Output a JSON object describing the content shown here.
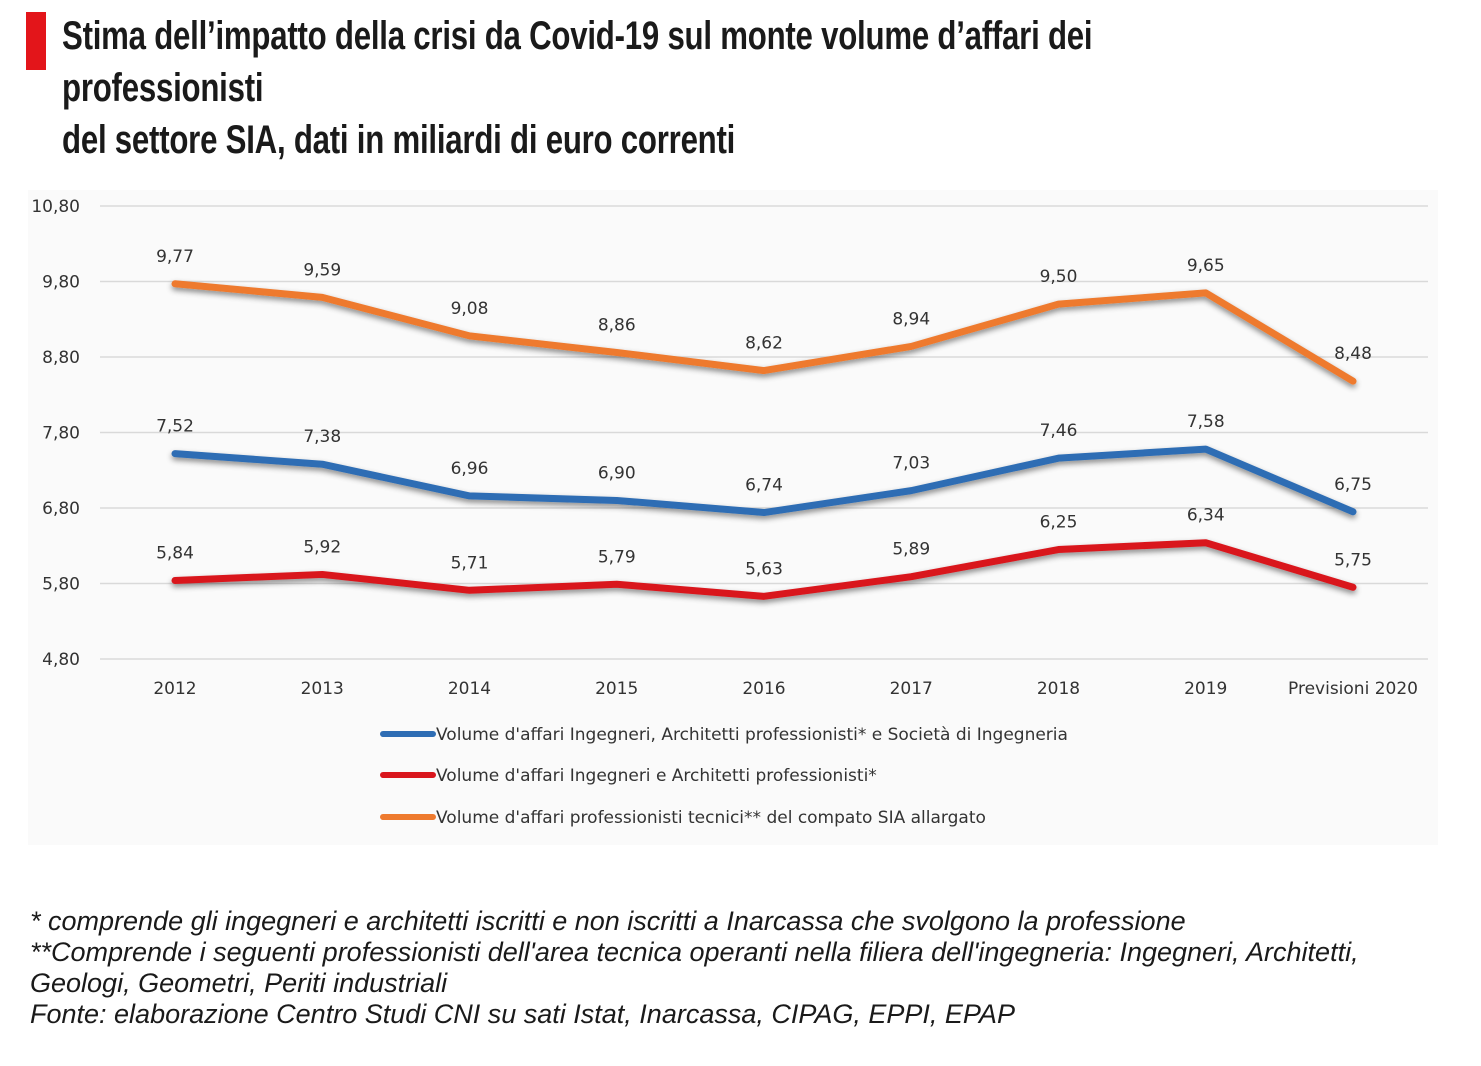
{
  "header": {
    "title_line1": "Stima dell’impatto della crisi da Covid-19 sul monte volume d’affari dei professionisti",
    "title_line2": "del settore SIA, dati in miliardi di euro correnti",
    "accent_color": "#e3151a"
  },
  "chart_data": {
    "type": "line",
    "categories": [
      "2012",
      "2013",
      "2014",
      "2015",
      "2016",
      "2017",
      "2018",
      "2019",
      "Previsioni 2020"
    ],
    "ylim": [
      4.8,
      10.8
    ],
    "yticks": [
      "4,80",
      "5,80",
      "6,80",
      "7,80",
      "8,80",
      "9,80",
      "10,80"
    ],
    "grid": true,
    "legend_position": "bottom",
    "series": [
      {
        "name": "Volume d'affari Ingegneri, Architetti professionisti* e Società di Ingegneria",
        "color": "#2e6db4",
        "values": [
          7.52,
          7.38,
          6.96,
          6.9,
          6.74,
          7.03,
          7.46,
          7.58,
          6.75
        ],
        "labels": [
          "7,52",
          "7,38",
          "6,96",
          "6,90",
          "6,74",
          "7,03",
          "7,46",
          "7,58",
          "6,75"
        ]
      },
      {
        "name": "Volume d'affari Ingegneri e Architetti professionisti*",
        "color": "#d9161d",
        "values": [
          5.84,
          5.92,
          5.71,
          5.79,
          5.63,
          5.89,
          6.25,
          6.34,
          5.75
        ],
        "labels": [
          "5,84",
          "5,92",
          "5,71",
          "5,79",
          "5,63",
          "5,89",
          "6,25",
          "6,34",
          "5,75"
        ]
      },
      {
        "name": "Volume d'affari professionisti tecnici** del compato SIA allargato",
        "color": "#ee7a2e",
        "values": [
          9.77,
          9.59,
          9.08,
          8.86,
          8.62,
          8.94,
          9.5,
          9.65,
          8.48
        ],
        "labels": [
          "9,77",
          "9,59",
          "9,08",
          "8,86",
          "8,62",
          "8,94",
          "9,50",
          "9,65",
          "8,48"
        ]
      }
    ]
  },
  "notes": {
    "line1": " * comprende gli ingegneri e architetti iscritti e non iscritti a Inarcassa che svolgono la professione",
    "line2": " **Comprende i seguenti professionisti dell'area tecnica operanti nella filiera dell'ingegneria: Ingegneri, Architetti,",
    "line3": "Geologi, Geometri, Periti industriali",
    "line4": "Fonte: elaborazione Centro Studi CNI su sati Istat, Inarcassa, CIPAG, EPPI, EPAP"
  }
}
